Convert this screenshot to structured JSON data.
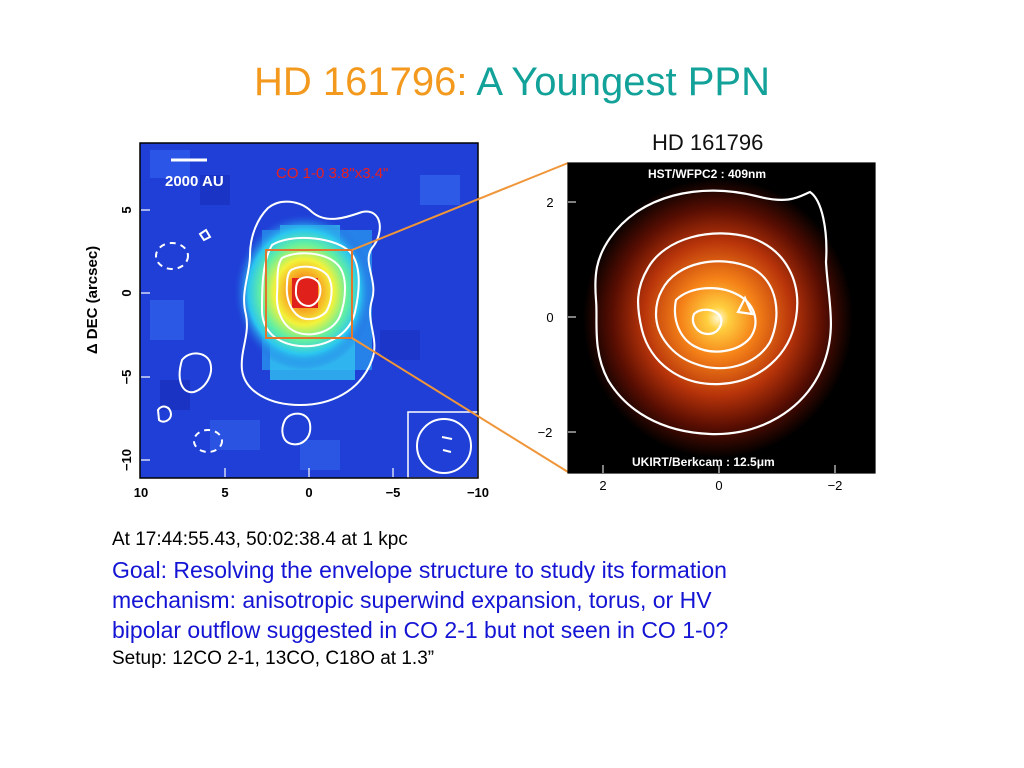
{
  "slide": {
    "title_part1": "HD 161796:",
    "title_part2": "A Youngest PPN"
  },
  "left_panel": {
    "scale_bar_label": "2000 AU",
    "beam_label": "CO 1-0 3.8\"x3.4\"",
    "y_axis_label": "Δ DEC (arcsec)",
    "x_ticks": [
      "10",
      "5",
      "0",
      "−5",
      "−10"
    ],
    "y_ticks": [
      "5",
      "0",
      "−5",
      "−10"
    ],
    "colors": {
      "background": "#1f3fd6",
      "frame_box": "#e2752e"
    }
  },
  "right_panel": {
    "title": "HD  161796",
    "top_label": "HST/WFPC2 : 409nm",
    "bottom_label": "UKIRT/Berkcam : 12.5μm",
    "x_ticks": [
      "2",
      "0",
      "−2"
    ],
    "y_ticks": [
      "2",
      "0",
      "−2"
    ]
  },
  "caption": {
    "line1": "At 17:44:55.43, 50:02:38.4 at 1 kpc",
    "goal1": "Goal: Resolving the envelope structure to study its formation",
    "goal2": "mechanism: anisotropic superwind expansion, torus, or HV",
    "goal3": "bipolar outflow suggested in CO 2-1 but not seen in CO 1-0?",
    "setup": "Setup: 12CO 2-1, 13CO, C18O at 1.3”"
  }
}
